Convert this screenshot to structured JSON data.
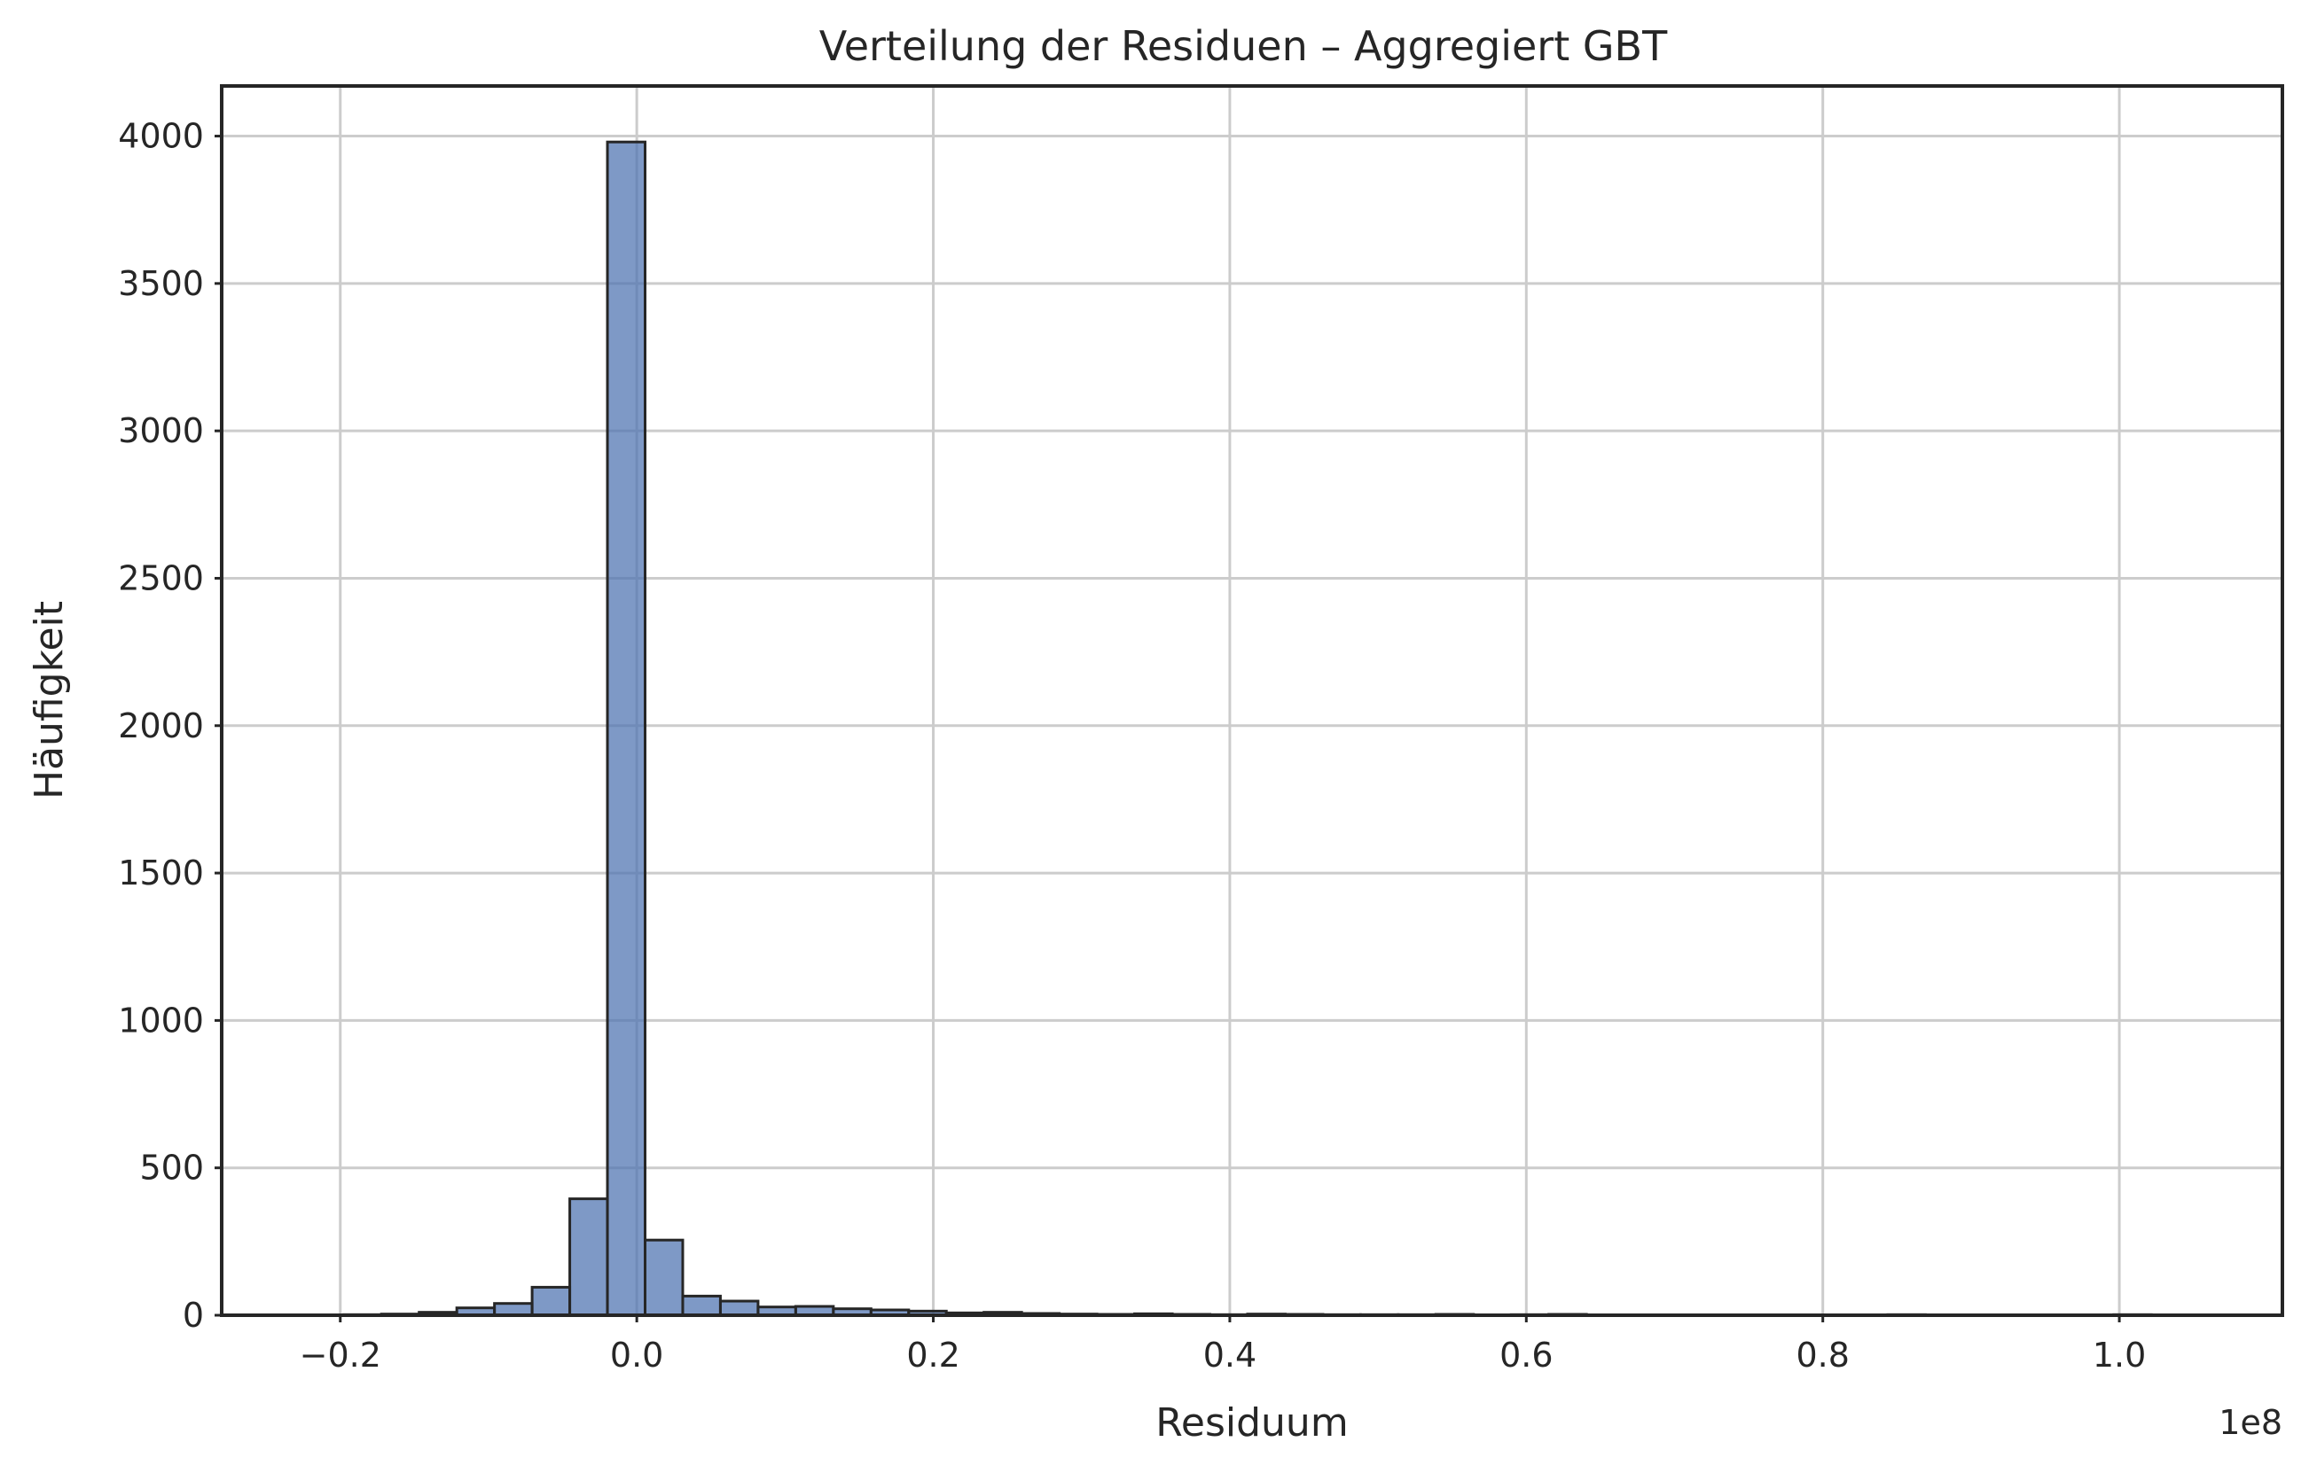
{
  "chart_data": {
    "type": "bar",
    "title": "Verteilung der Residuen – Aggregiert GBT",
    "xlabel": "Residuum",
    "ylabel": "Häufigkeit",
    "x_offset_label": "1e8",
    "xlim": [
      -0.28,
      1.11
    ],
    "ylim": [
      0,
      4170
    ],
    "xticks": [
      -0.2,
      0.0,
      0.2,
      0.4,
      0.6,
      0.8,
      1.0
    ],
    "xtick_labels": [
      "−0.2",
      "0.0",
      "0.2",
      "0.4",
      "0.6",
      "0.8",
      "1.0"
    ],
    "yticks": [
      0,
      500,
      1000,
      1500,
      2000,
      2500,
      3000,
      3500,
      4000
    ],
    "ytick_labels": [
      "0",
      "500",
      "1000",
      "1500",
      "2000",
      "2500",
      "3000",
      "3500",
      "4000"
    ],
    "grid": true,
    "bin_start": -0.223,
    "bin_width": 0.0254,
    "values": [
      1,
      2,
      4,
      10,
      25,
      40,
      95,
      395,
      3980,
      255,
      65,
      48,
      28,
      30,
      22,
      18,
      14,
      8,
      10,
      6,
      4,
      3,
      5,
      3,
      2,
      4,
      3,
      2,
      2,
      2,
      3,
      1,
      2,
      3,
      1,
      1,
      1,
      1,
      1,
      1,
      1,
      1,
      2,
      1,
      1,
      1,
      1,
      1,
      2,
      1,
      1
    ],
    "colors": {
      "bar": "#4c72b0",
      "edge": "#262626",
      "grid": "#cccccc"
    }
  }
}
